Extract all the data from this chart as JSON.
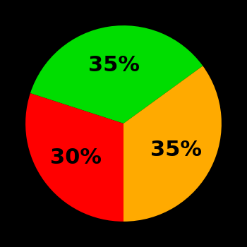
{
  "slices": [
    35,
    35,
    30
  ],
  "colors": [
    "#00dd00",
    "#ffaa00",
    "#ff0000"
  ],
  "labels": [
    "35%",
    "35%",
    "30%"
  ],
  "background_color": "#000000",
  "label_color": "#000000",
  "label_fontsize": 22,
  "startangle": 162,
  "counterclock": false
}
